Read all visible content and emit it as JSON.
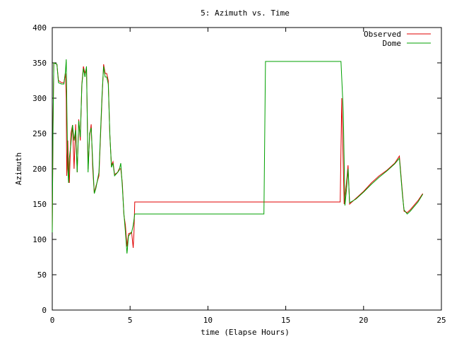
{
  "chart_data": {
    "type": "line",
    "title": "5: Azimuth vs. Time",
    "xlabel": "time (Elapse Hours)",
    "ylabel": "Azimuth",
    "xlim": [
      0,
      25
    ],
    "ylim": [
      0,
      400
    ],
    "xticks": [
      0,
      5,
      10,
      15,
      20,
      25
    ],
    "yticks": [
      0,
      50,
      100,
      150,
      200,
      250,
      300,
      350,
      400
    ],
    "grid": false,
    "legend": "top-right",
    "series": [
      {
        "name": "Observed",
        "color": "#e00000",
        "points": [
          [
            0.0,
            110
          ],
          [
            0.05,
            263
          ],
          [
            0.1,
            350
          ],
          [
            0.3,
            348
          ],
          [
            0.4,
            325
          ],
          [
            0.6,
            322
          ],
          [
            0.75,
            322
          ],
          [
            0.85,
            335
          ],
          [
            0.9,
            300
          ],
          [
            0.93,
            190
          ],
          [
            1.0,
            240
          ],
          [
            1.05,
            195
          ],
          [
            1.1,
            180
          ],
          [
            1.2,
            250
          ],
          [
            1.3,
            262
          ],
          [
            1.4,
            200
          ],
          [
            1.5,
            263
          ],
          [
            1.6,
            195
          ],
          [
            1.7,
            270
          ],
          [
            1.8,
            240
          ],
          [
            1.9,
            320
          ],
          [
            2.0,
            345
          ],
          [
            2.1,
            335
          ],
          [
            2.2,
            343
          ],
          [
            2.3,
            200
          ],
          [
            2.4,
            245
          ],
          [
            2.5,
            263
          ],
          [
            2.6,
            200
          ],
          [
            2.7,
            165
          ],
          [
            2.8,
            175
          ],
          [
            3.0,
            190
          ],
          [
            3.2,
            300
          ],
          [
            3.3,
            348
          ],
          [
            3.4,
            335
          ],
          [
            3.5,
            335
          ],
          [
            3.6,
            325
          ],
          [
            3.7,
            248
          ],
          [
            3.8,
            205
          ],
          [
            3.9,
            210
          ],
          [
            4.0,
            192
          ],
          [
            4.2,
            195
          ],
          [
            4.3,
            200
          ],
          [
            4.4,
            200
          ],
          [
            4.5,
            180
          ],
          [
            4.6,
            135
          ],
          [
            4.7,
            120
          ],
          [
            4.8,
            90
          ],
          [
            4.9,
            108
          ],
          [
            5.1,
            110
          ],
          [
            5.2,
            88
          ],
          [
            5.25,
            110
          ],
          [
            5.3,
            153
          ],
          [
            18.5,
            153
          ],
          [
            18.6,
            300
          ],
          [
            18.75,
            150
          ],
          [
            18.9,
            180
          ],
          [
            19.0,
            205
          ],
          [
            19.1,
            150
          ],
          [
            19.5,
            158
          ],
          [
            20.0,
            168
          ],
          [
            20.5,
            180
          ],
          [
            21.0,
            190
          ],
          [
            21.5,
            198
          ],
          [
            22.0,
            208
          ],
          [
            22.3,
            218
          ],
          [
            22.5,
            165
          ],
          [
            22.6,
            140
          ],
          [
            22.8,
            138
          ],
          [
            23.0,
            142
          ],
          [
            23.5,
            155
          ],
          [
            23.8,
            165
          ]
        ]
      },
      {
        "name": "Dome",
        "color": "#00a000",
        "points": [
          [
            0.0,
            110
          ],
          [
            0.05,
            262
          ],
          [
            0.1,
            350
          ],
          [
            0.3,
            348
          ],
          [
            0.4,
            322
          ],
          [
            0.6,
            320
          ],
          [
            0.75,
            320
          ],
          [
            0.85,
            338
          ],
          [
            0.9,
            355
          ],
          [
            0.95,
            270
          ],
          [
            1.0,
            200
          ],
          [
            1.05,
            180
          ],
          [
            1.1,
            215
          ],
          [
            1.2,
            235
          ],
          [
            1.3,
            262
          ],
          [
            1.4,
            240
          ],
          [
            1.5,
            255
          ],
          [
            1.6,
            195
          ],
          [
            1.7,
            268
          ],
          [
            1.8,
            245
          ],
          [
            1.9,
            318
          ],
          [
            2.0,
            342
          ],
          [
            2.1,
            330
          ],
          [
            2.2,
            345
          ],
          [
            2.3,
            195
          ],
          [
            2.4,
            250
          ],
          [
            2.5,
            258
          ],
          [
            2.6,
            210
          ],
          [
            2.7,
            165
          ],
          [
            2.8,
            172
          ],
          [
            3.0,
            195
          ],
          [
            3.2,
            305
          ],
          [
            3.3,
            345
          ],
          [
            3.4,
            330
          ],
          [
            3.5,
            330
          ],
          [
            3.6,
            320
          ],
          [
            3.7,
            250
          ],
          [
            3.8,
            202
          ],
          [
            3.9,
            208
          ],
          [
            4.0,
            190
          ],
          [
            4.2,
            195
          ],
          [
            4.3,
            198
          ],
          [
            4.4,
            208
          ],
          [
            4.5,
            175
          ],
          [
            4.6,
            137
          ],
          [
            4.7,
            110
          ],
          [
            4.8,
            80
          ],
          [
            4.9,
            105
          ],
          [
            5.1,
            110
          ],
          [
            5.2,
            120
          ],
          [
            5.3,
            136
          ],
          [
            13.6,
            136
          ],
          [
            13.7,
            352
          ],
          [
            18.55,
            352
          ],
          [
            18.7,
            280
          ],
          [
            18.8,
            148
          ],
          [
            18.9,
            170
          ],
          [
            19.0,
            200
          ],
          [
            19.1,
            152
          ],
          [
            19.5,
            157
          ],
          [
            20.0,
            167
          ],
          [
            20.5,
            178
          ],
          [
            21.0,
            188
          ],
          [
            21.5,
            197
          ],
          [
            22.0,
            207
          ],
          [
            22.3,
            215
          ],
          [
            22.5,
            162
          ],
          [
            22.6,
            142
          ],
          [
            22.8,
            136
          ],
          [
            23.0,
            140
          ],
          [
            23.5,
            153
          ],
          [
            23.8,
            164
          ]
        ]
      }
    ]
  }
}
